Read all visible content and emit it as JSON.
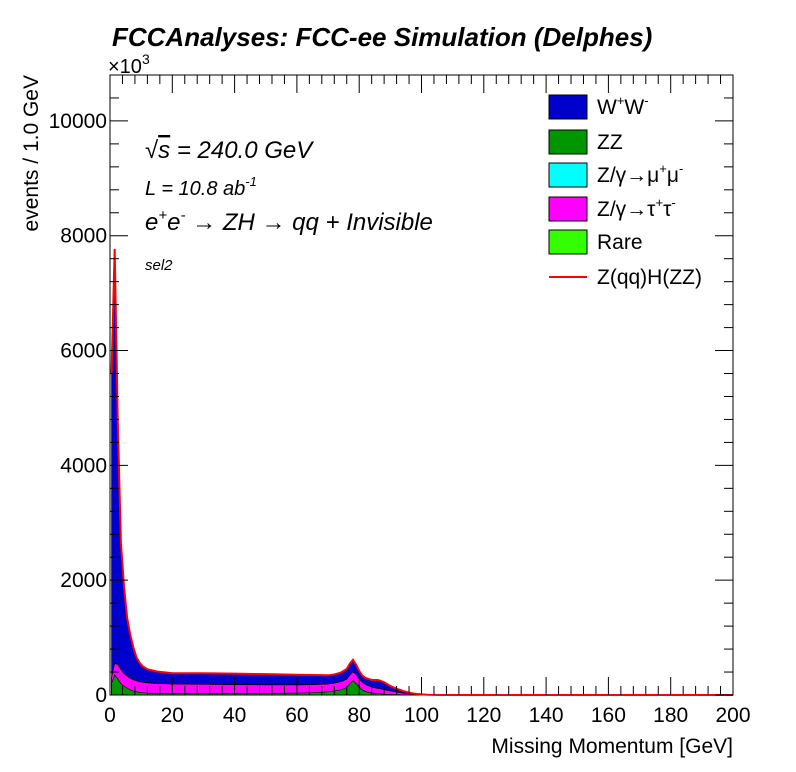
{
  "chart_data": {
    "type": "area",
    "stacked": true,
    "title": "FCCAnalyses: FCC-ee Simulation (Delphes)",
    "xlabel": "Missing Momentum [GeV]",
    "ylabel": "events / 1.0 GeV",
    "y_multiplier": "×10",
    "y_multiplier_exp": "3",
    "xlim": [
      0,
      200
    ],
    "ylim": [
      0,
      10800
    ],
    "x_ticks": [
      0,
      20,
      40,
      60,
      80,
      100,
      120,
      140,
      160,
      180,
      200
    ],
    "y_ticks": [
      0,
      2000,
      4000,
      6000,
      8000,
      10000
    ],
    "annotations": {
      "sqrt_s": {
        "sym": "√",
        "s": "s",
        "rest": " = 240.0 GeV"
      },
      "lumi": {
        "base": "L = 10.8 ab",
        "exp": "-1"
      },
      "process": {
        "e1": "e",
        "ep": "+",
        "e2": "e",
        "em": "-",
        "a1": " → ZH ",
        "a2": " → qq + Invisible"
      },
      "selection": "sel2"
    },
    "legend_position": "top-right",
    "x": [
      0.5,
      1.5,
      2.5,
      3.5,
      4.5,
      5.5,
      6.5,
      7.5,
      8.5,
      9.5,
      10.5,
      12,
      15,
      20,
      30,
      40,
      50,
      60,
      65,
      70,
      72,
      74,
      76,
      77,
      78,
      79,
      80,
      81,
      82,
      84,
      86,
      88,
      89,
      90,
      92,
      94,
      96,
      98,
      100,
      102,
      104,
      106,
      110,
      120,
      200
    ],
    "series": [
      {
        "name": "Rare",
        "color": "#33ff00",
        "values": [
          0,
          0,
          0,
          0,
          0,
          0,
          0,
          0,
          0,
          0,
          0,
          0,
          0,
          0,
          0,
          0,
          0,
          0,
          0,
          0,
          0,
          0,
          0,
          0,
          0,
          0,
          0,
          0,
          0,
          0,
          0,
          0,
          0,
          0,
          0,
          0,
          0,
          0,
          0,
          0,
          0,
          0,
          0,
          0,
          0
        ]
      },
      {
        "name": "ZZ",
        "color": "#009600",
        "values": [
          200,
          350,
          280,
          200,
          150,
          120,
          90,
          70,
          55,
          45,
          40,
          35,
          30,
          30,
          30,
          30,
          30,
          35,
          40,
          55,
          70,
          90,
          130,
          200,
          250,
          200,
          140,
          90,
          60,
          35,
          25,
          15,
          12,
          10,
          6,
          4,
          2,
          1,
          0,
          0,
          0,
          0,
          0,
          0,
          0
        ]
      },
      {
        "name": "Z/γ→τ⁺τ⁻",
        "color": "#ff00ff",
        "values": [
          100,
          200,
          250,
          240,
          220,
          210,
          200,
          195,
          190,
          185,
          180,
          175,
          170,
          160,
          155,
          150,
          145,
          140,
          140,
          135,
          135,
          140,
          145,
          150,
          155,
          150,
          140,
          130,
          120,
          100,
          90,
          80,
          70,
          60,
          45,
          30,
          18,
          10,
          5,
          2,
          1,
          0,
          0,
          0,
          0
        ]
      },
      {
        "name": "Z/γ→μ⁺μ⁻",
        "color": "#00ffff",
        "values": [
          5,
          10,
          10,
          10,
          8,
          8,
          6,
          6,
          5,
          5,
          5,
          5,
          5,
          4,
          4,
          4,
          4,
          4,
          4,
          4,
          4,
          4,
          4,
          4,
          4,
          4,
          4,
          4,
          3,
          3,
          3,
          3,
          3,
          2,
          2,
          1,
          1,
          0,
          0,
          0,
          0,
          0,
          0,
          0,
          0
        ]
      },
      {
        "name": "W⁺W⁻",
        "color": "#0000cc",
        "values": [
          5300,
          7200,
          4200,
          2200,
          1500,
          1000,
          750,
          550,
          400,
          320,
          270,
          230,
          200,
          180,
          185,
          185,
          180,
          170,
          160,
          145,
          145,
          150,
          170,
          190,
          200,
          170,
          130,
          110,
          110,
          120,
          140,
          120,
          100,
          80,
          55,
          35,
          20,
          10,
          5,
          2,
          1,
          0,
          0,
          0,
          0
        ]
      }
    ],
    "signal": {
      "name": "Z(qq)H(ZZ)",
      "color": "#ff0000",
      "values": [
        5,
        10,
        10,
        10,
        8,
        8,
        6,
        6,
        5,
        5,
        5,
        5,
        4,
        4,
        4,
        4,
        4,
        4,
        4,
        4,
        4,
        4,
        4,
        4,
        4,
        4,
        4,
        4,
        4,
        4,
        4,
        4,
        4,
        3,
        2,
        1,
        1,
        0,
        0,
        0,
        0,
        0,
        0,
        0,
        0
      ]
    },
    "legend": {
      "ww": {
        "a": "W",
        "b": "+",
        "c": "W",
        "d": "-"
      },
      "zz": "ZZ",
      "mumu": {
        "a": "Z/γ→μ",
        "b": "+",
        "c": "μ",
        "d": "-"
      },
      "tautau": {
        "a": "Z/γ→τ",
        "b": "+",
        "c": "τ",
        "d": "-"
      },
      "rare": "Rare",
      "signal": "Z(qq)H(ZZ)"
    }
  }
}
